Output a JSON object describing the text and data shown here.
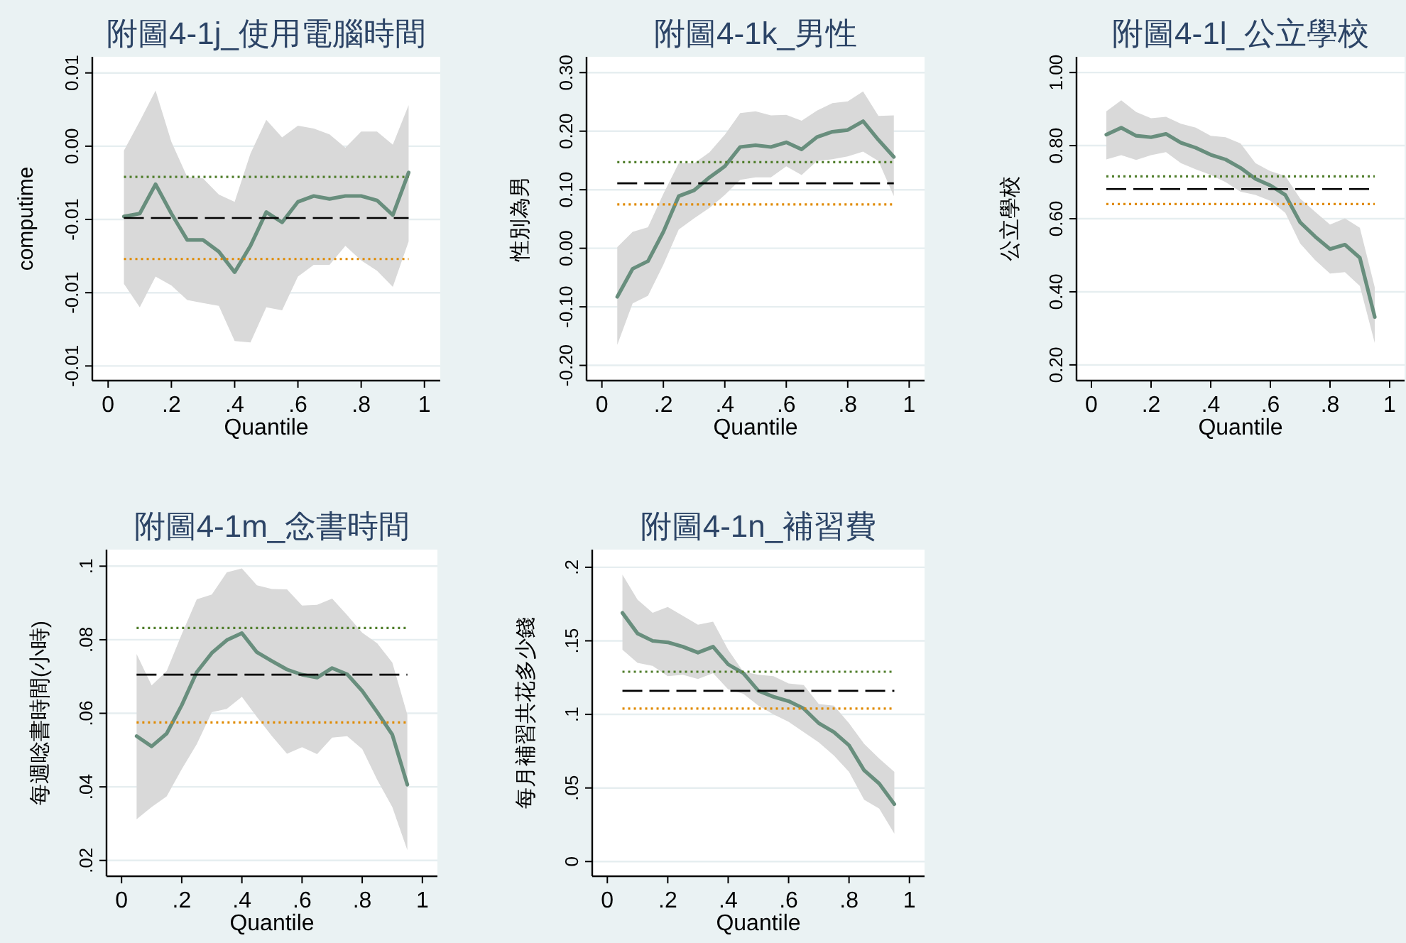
{
  "chart_data": [
    {
      "type": "line",
      "title": "附圖4-1j_使用電腦時間",
      "xlabel": "Quantile",
      "ylabel": "computime",
      "grid": "y",
      "line_style": "solid",
      "marker": "none",
      "x": [
        0.05,
        0.1,
        0.15,
        0.2,
        0.25,
        0.3,
        0.35,
        0.4,
        0.45,
        0.5,
        0.55,
        0.6,
        0.65,
        0.7,
        0.75,
        0.8,
        0.85,
        0.9,
        0.95
      ],
      "series": [
        {
          "color": "#688e7d",
          "values": [
            -0.0048,
            -0.0046,
            -0.0026,
            -0.0046,
            -0.0064,
            -0.0064,
            -0.0072,
            -0.0086,
            -0.0068,
            -0.0045,
            -0.0052,
            -0.0038,
            -0.0034,
            -0.0036,
            -0.0034,
            -0.0034,
            -0.0037,
            -0.0047,
            -0.0018
          ],
          "lower": [
            -0.0094,
            -0.011,
            -0.0089,
            -0.0095,
            -0.0105,
            -0.0107,
            -0.0109,
            -0.0133,
            -0.0134,
            -0.011,
            -0.0112,
            -0.0089,
            -0.0081,
            -0.0081,
            -0.0068,
            -0.0078,
            -0.0085,
            -0.0096,
            -0.0065
          ],
          "upper": [
            -0.0003,
            0.0017,
            0.0038,
            0.0003,
            -0.0021,
            -0.0022,
            -0.0033,
            -0.0038,
            -0.0005,
            0.0018,
            0.0006,
            0.0014,
            0.0012,
            0.0008,
            -0.0001,
            0.001,
            0.001,
            0.0001,
            0.0028
          ]
        }
      ],
      "ref_lines": [
        {
          "axis": "y",
          "value": -0.0021,
          "color": "#4f7d2a",
          "line_style": "dotted"
        },
        {
          "axis": "y",
          "value": -0.0049,
          "color": "#000000",
          "line_style": "dashed"
        },
        {
          "axis": "y",
          "value": -0.0077,
          "color": "#e08a00",
          "line_style": "dotted"
        }
      ],
      "xlim": [
        -0.05,
        1.05
      ],
      "ylim": [
        -0.016,
        0.0061
      ],
      "xticks": [
        {
          "value": 0,
          "label": "0"
        },
        {
          "value": 0.2,
          "label": ".2"
        },
        {
          "value": 0.4,
          "label": ".4"
        },
        {
          "value": 0.6,
          "label": ".6"
        },
        {
          "value": 0.8,
          "label": ".8"
        },
        {
          "value": 1,
          "label": "1"
        }
      ],
      "yticks": [
        {
          "value": -0.015,
          "label": "-0.01"
        },
        {
          "value": -0.01,
          "label": "-0.01"
        },
        {
          "value": -0.005,
          "label": "-0.01"
        },
        {
          "value": 0,
          "label": "0.00"
        },
        {
          "value": 0.005,
          "label": "0.01"
        }
      ]
    },
    {
      "type": "line",
      "title": "附圖4-1k_男性",
      "xlabel": "Quantile",
      "ylabel": "性別為男",
      "grid": "y",
      "line_style": "solid",
      "marker": "none",
      "x": [
        0.05,
        0.1,
        0.15,
        0.2,
        0.25,
        0.3,
        0.35,
        0.4,
        0.45,
        0.5,
        0.55,
        0.6,
        0.65,
        0.7,
        0.75,
        0.8,
        0.85,
        0.9,
        0.95
      ],
      "series": [
        {
          "color": "#688e7d",
          "values": [
            -0.083,
            -0.035,
            -0.022,
            0.028,
            0.089,
            0.099,
            0.121,
            0.14,
            0.173,
            0.176,
            0.173,
            0.181,
            0.169,
            0.19,
            0.199,
            0.202,
            0.217,
            0.185,
            0.156
          ],
          "lower": [
            -0.165,
            -0.094,
            -0.081,
            -0.028,
            0.032,
            0.051,
            0.069,
            0.091,
            0.117,
            0.121,
            0.121,
            0.14,
            0.125,
            0.149,
            0.152,
            0.157,
            0.165,
            0.149,
            0.089
          ],
          "upper": [
            0.002,
            0.028,
            0.036,
            0.093,
            0.145,
            0.145,
            0.164,
            0.194,
            0.231,
            0.234,
            0.227,
            0.228,
            0.218,
            0.235,
            0.248,
            0.251,
            0.268,
            0.226,
            0.227
          ]
        }
      ],
      "ref_lines": [
        {
          "axis": "y",
          "value": 0.147,
          "color": "#4f7d2a",
          "line_style": "dotted"
        },
        {
          "axis": "y",
          "value": 0.111,
          "color": "#000000",
          "line_style": "dashed"
        },
        {
          "axis": "y",
          "value": 0.075,
          "color": "#e08a00",
          "line_style": "dotted"
        }
      ],
      "xlim": [
        -0.05,
        1.05
      ],
      "ylim": [
        -0.226,
        0.327
      ],
      "xticks": [
        {
          "value": 0,
          "label": "0"
        },
        {
          "value": 0.2,
          "label": ".2"
        },
        {
          "value": 0.4,
          "label": ".4"
        },
        {
          "value": 0.6,
          "label": ".6"
        },
        {
          "value": 0.8,
          "label": ".8"
        },
        {
          "value": 1,
          "label": "1"
        }
      ],
      "yticks": [
        {
          "value": -0.2,
          "label": "-0.20"
        },
        {
          "value": -0.1,
          "label": "-0.10"
        },
        {
          "value": 0,
          "label": "0.00"
        },
        {
          "value": 0.1,
          "label": "0.10"
        },
        {
          "value": 0.2,
          "label": "0.20"
        },
        {
          "value": 0.3,
          "label": "0.30"
        }
      ]
    },
    {
      "type": "line",
      "title": "附圖4-1l_公立學校",
      "xlabel": "Quantile",
      "ylabel": "公立學校",
      "grid": "y",
      "line_style": "solid",
      "marker": "none",
      "x": [
        0.05,
        0.1,
        0.15,
        0.2,
        0.25,
        0.3,
        0.35,
        0.4,
        0.45,
        0.5,
        0.55,
        0.6,
        0.65,
        0.7,
        0.75,
        0.8,
        0.85,
        0.9,
        0.95
      ],
      "series": [
        {
          "color": "#688e7d",
          "values": [
            0.83,
            0.849,
            0.827,
            0.823,
            0.832,
            0.808,
            0.794,
            0.775,
            0.762,
            0.739,
            0.709,
            0.691,
            0.665,
            0.59,
            0.551,
            0.517,
            0.529,
            0.493,
            0.331
          ],
          "lower": [
            0.762,
            0.774,
            0.761,
            0.774,
            0.782,
            0.752,
            0.735,
            0.72,
            0.7,
            0.674,
            0.665,
            0.649,
            0.616,
            0.532,
            0.487,
            0.45,
            0.454,
            0.416,
            0.26
          ],
          "upper": [
            0.894,
            0.924,
            0.892,
            0.875,
            0.879,
            0.86,
            0.849,
            0.827,
            0.823,
            0.806,
            0.752,
            0.73,
            0.717,
            0.655,
            0.619,
            0.584,
            0.601,
            0.575,
            0.412
          ]
        }
      ],
      "ref_lines": [
        {
          "axis": "y",
          "value": 0.716,
          "color": "#4f7d2a",
          "line_style": "dotted"
        },
        {
          "axis": "y",
          "value": 0.681,
          "color": "#000000",
          "line_style": "dashed"
        },
        {
          "axis": "y",
          "value": 0.64,
          "color": "#e08a00",
          "line_style": "dotted"
        }
      ],
      "xlim": [
        -0.05,
        1.05
      ],
      "ylim": [
        0.157,
        1.043
      ],
      "xticks": [
        {
          "value": 0,
          "label": "0"
        },
        {
          "value": 0.2,
          "label": ".2"
        },
        {
          "value": 0.4,
          "label": ".4"
        },
        {
          "value": 0.6,
          "label": ".6"
        },
        {
          "value": 0.8,
          "label": ".8"
        },
        {
          "value": 1,
          "label": "1"
        }
      ],
      "yticks": [
        {
          "value": 0.2,
          "label": "0.20"
        },
        {
          "value": 0.4,
          "label": "0.40"
        },
        {
          "value": 0.6,
          "label": "0.60"
        },
        {
          "value": 0.8,
          "label": "0.80"
        },
        {
          "value": 1,
          "label": "1.00"
        }
      ]
    },
    {
      "type": "line",
      "title": "附圖4-1m_念書時間",
      "xlabel": "Quantile",
      "ylabel": "每週唸書時間(小時)",
      "grid": "y",
      "line_style": "solid",
      "marker": "none",
      "x": [
        0.05,
        0.1,
        0.15,
        0.2,
        0.25,
        0.3,
        0.35,
        0.4,
        0.45,
        0.5,
        0.55,
        0.6,
        0.65,
        0.7,
        0.75,
        0.8,
        0.85,
        0.9,
        0.95
      ],
      "series": [
        {
          "color": "#688e7d",
          "values": [
            0.0538,
            0.051,
            0.0545,
            0.0622,
            0.0712,
            0.0764,
            0.0799,
            0.0818,
            0.0766,
            0.0742,
            0.0719,
            0.0705,
            0.0697,
            0.0723,
            0.0706,
            0.0661,
            0.0603,
            0.0542,
            0.0406
          ],
          "lower": [
            0.0312,
            0.0345,
            0.0374,
            0.0448,
            0.0516,
            0.0603,
            0.0612,
            0.0645,
            0.059,
            0.0538,
            0.049,
            0.0508,
            0.0489,
            0.0534,
            0.0538,
            0.0503,
            0.0419,
            0.0345,
            0.0228
          ],
          "upper": [
            0.0761,
            0.0676,
            0.0715,
            0.0815,
            0.091,
            0.0923,
            0.0983,
            0.0994,
            0.0948,
            0.0938,
            0.0937,
            0.0893,
            0.0895,
            0.0912,
            0.0867,
            0.0819,
            0.079,
            0.0738,
            0.0596
          ]
        }
      ],
      "ref_lines": [
        {
          "axis": "y",
          "value": 0.0832,
          "color": "#4f7d2a",
          "line_style": "dotted"
        },
        {
          "axis": "y",
          "value": 0.0705,
          "color": "#000000",
          "line_style": "dashed"
        },
        {
          "axis": "y",
          "value": 0.0575,
          "color": "#e08a00",
          "line_style": "dotted"
        }
      ],
      "xlim": [
        -0.05,
        1.05
      ],
      "ylim": [
        0.0157,
        0.1045
      ],
      "xticks": [
        {
          "value": 0,
          "label": "0"
        },
        {
          "value": 0.2,
          "label": ".2"
        },
        {
          "value": 0.4,
          "label": ".4"
        },
        {
          "value": 0.6,
          "label": ".6"
        },
        {
          "value": 0.8,
          "label": ".8"
        },
        {
          "value": 1,
          "label": "1"
        }
      ],
      "yticks": [
        {
          "value": 0.02,
          "label": ".02"
        },
        {
          "value": 0.04,
          "label": ".04"
        },
        {
          "value": 0.06,
          "label": ".06"
        },
        {
          "value": 0.08,
          "label": ".08"
        },
        {
          "value": 0.1,
          "label": ".1"
        }
      ]
    },
    {
      "type": "line",
      "title": "附圖4-1n_補習費",
      "xlabel": "Quantile",
      "ylabel": "每月補習共花多少錢",
      "grid": "y",
      "line_style": "solid",
      "marker": "none",
      "x": [
        0.05,
        0.1,
        0.15,
        0.2,
        0.25,
        0.3,
        0.35,
        0.4,
        0.45,
        0.5,
        0.55,
        0.6,
        0.65,
        0.7,
        0.75,
        0.8,
        0.85,
        0.9,
        0.95
      ],
      "series": [
        {
          "color": "#688e7d",
          "values": [
            0.169,
            0.155,
            0.15,
            0.149,
            0.146,
            0.142,
            0.146,
            0.134,
            0.128,
            0.116,
            0.112,
            0.109,
            0.104,
            0.094,
            0.088,
            0.079,
            0.062,
            0.053,
            0.039
          ],
          "lower": [
            0.144,
            0.135,
            0.133,
            0.126,
            0.127,
            0.124,
            0.128,
            0.117,
            0.114,
            0.106,
            0.1,
            0.095,
            0.088,
            0.081,
            0.072,
            0.061,
            0.042,
            0.036,
            0.019
          ],
          "upper": [
            0.195,
            0.178,
            0.169,
            0.173,
            0.167,
            0.161,
            0.163,
            0.144,
            0.129,
            0.127,
            0.126,
            0.121,
            0.12,
            0.107,
            0.106,
            0.094,
            0.08,
            0.07,
            0.061
          ]
        }
      ],
      "ref_lines": [
        {
          "axis": "y",
          "value": 0.129,
          "color": "#4f7d2a",
          "line_style": "dotted"
        },
        {
          "axis": "y",
          "value": 0.116,
          "color": "#000000",
          "line_style": "dashed"
        },
        {
          "axis": "y",
          "value": 0.104,
          "color": "#e08a00",
          "line_style": "dotted"
        }
      ],
      "xlim": [
        -0.05,
        1.05
      ],
      "ylim": [
        -0.01,
        0.212
      ],
      "xticks": [
        {
          "value": 0,
          "label": "0"
        },
        {
          "value": 0.2,
          "label": ".2"
        },
        {
          "value": 0.4,
          "label": ".4"
        },
        {
          "value": 0.6,
          "label": ".6"
        },
        {
          "value": 0.8,
          "label": ".8"
        },
        {
          "value": 1,
          "label": "1"
        }
      ],
      "yticks": [
        {
          "value": 0,
          "label": "0"
        },
        {
          "value": 0.05,
          "label": ".05"
        },
        {
          "value": 0.1,
          "label": ".1"
        },
        {
          "value": 0.15,
          "label": ".15"
        },
        {
          "value": 0.2,
          "label": ".2"
        }
      ]
    }
  ]
}
